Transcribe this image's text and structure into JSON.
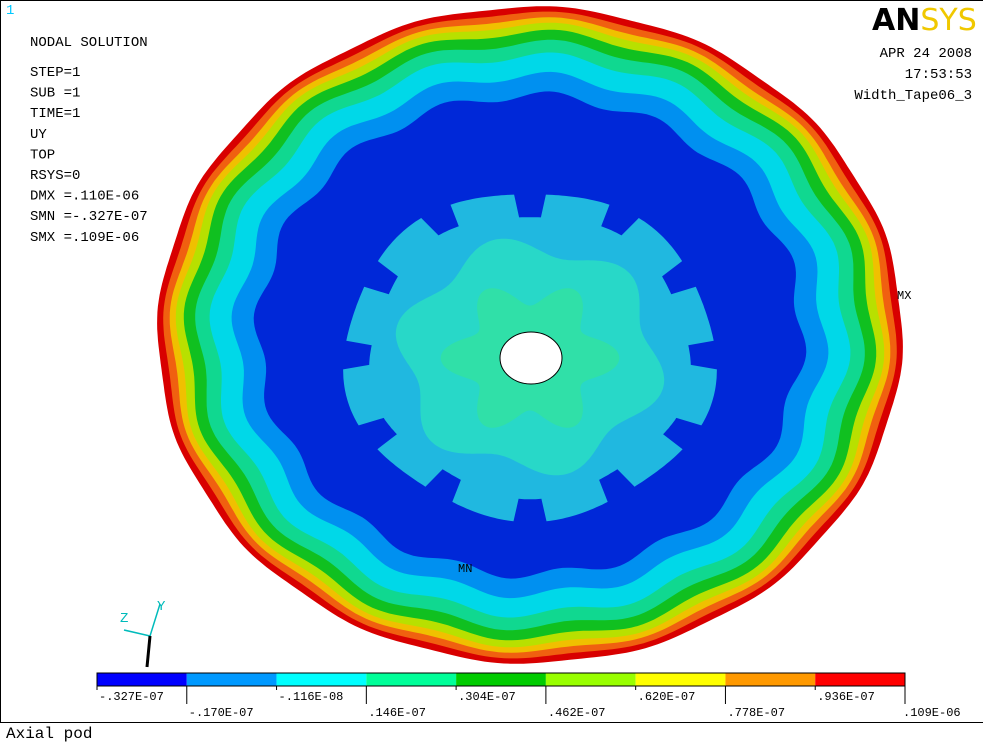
{
  "window": "1",
  "logo": {
    "dark": "AN",
    "light": "SYS"
  },
  "info": [
    "NODAL SOLUTION",
    "STEP=1",
    "SUB =1",
    "TIME=1",
    "UY",
    "TOP",
    "RSYS=0",
    "DMX =.110E-06",
    "SMN =-.327E-07",
    "SMX =.109E-06"
  ],
  "date": "APR 24 2008",
  "time": "17:53:53",
  "jobname": "Width_Tape06_3",
  "markers": {
    "max": "MX",
    "min": "MN"
  },
  "triad": {
    "z": "Z",
    "y": "Y"
  },
  "legend": [
    "-.327E-07",
    "-.170E-07",
    "-.116E-08",
    ".146E-07",
    ".304E-07",
    ".462E-07",
    ".620E-07",
    ".778E-07",
    ".936E-07",
    ".109E-06"
  ],
  "footer": "Axial pod"
}
